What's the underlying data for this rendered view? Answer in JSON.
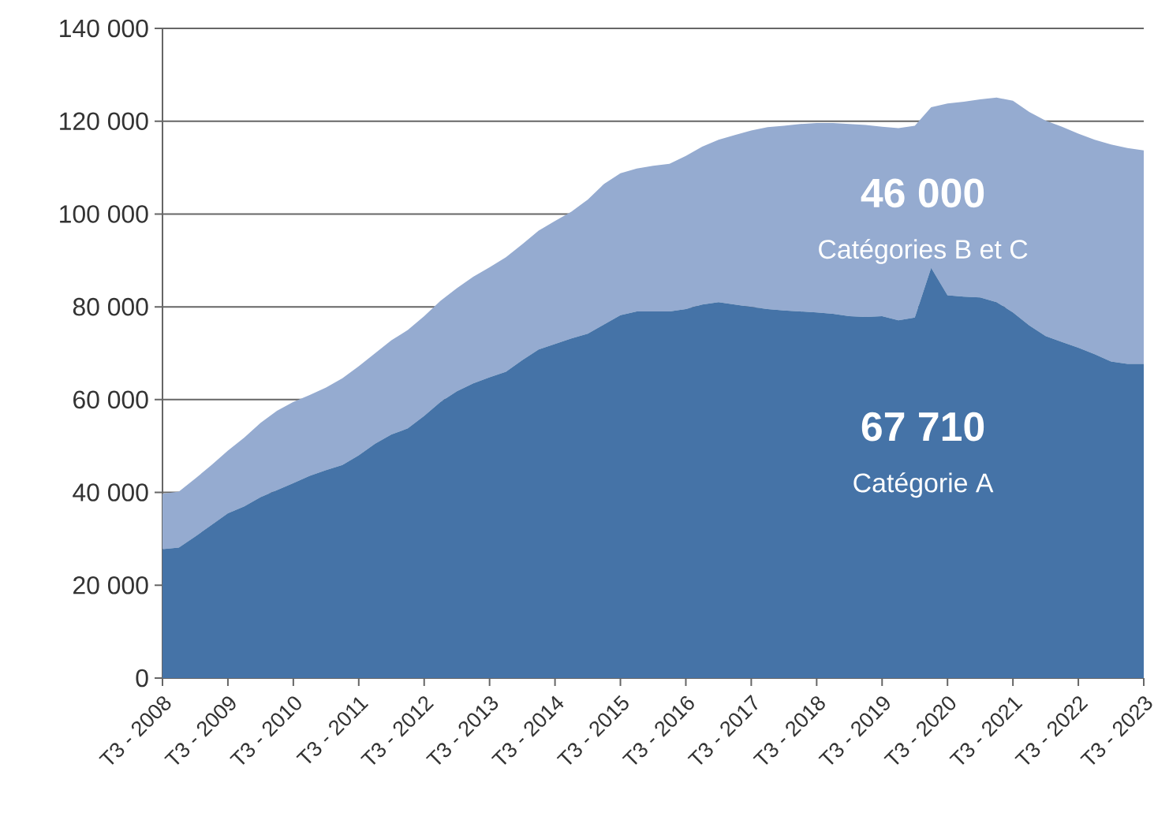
{
  "chart_data": {
    "type": "area",
    "stacked": true,
    "categories": [
      "T3 - 2008",
      null,
      null,
      null,
      "T3 - 2009",
      null,
      null,
      null,
      "T3 - 2010",
      null,
      null,
      null,
      "T3 - 2011",
      null,
      null,
      null,
      "T3 - 2012",
      null,
      null,
      null,
      "T3 - 2013",
      null,
      null,
      null,
      "T3 - 2014",
      null,
      null,
      null,
      "T3 - 2015",
      null,
      null,
      null,
      "T3 - 2016",
      null,
      null,
      null,
      "T3 - 2017",
      null,
      null,
      null,
      "T3 - 2018",
      null,
      null,
      null,
      "T3 - 2019",
      null,
      null,
      null,
      "T3 - 2020",
      null,
      null,
      null,
      "T3 - 2021",
      null,
      null,
      null,
      "T3 - 2022",
      null,
      null,
      null,
      "T3 - 2023"
    ],
    "series": [
      {
        "name": "Catégorie A",
        "color": "#4573a7",
        "values": [
          27800,
          28100,
          30500,
          33000,
          35500,
          37000,
          39000,
          40500,
          42000,
          43600,
          44800,
          45900,
          48000,
          50500,
          52500,
          53800,
          56500,
          59500,
          61800,
          63500,
          64800,
          66000,
          68500,
          70800,
          72000,
          73200,
          74200,
          76200,
          78200,
          79000,
          79000,
          79000,
          79500,
          80500,
          81000,
          80500,
          80000,
          79500,
          79200,
          79000,
          78800,
          78500,
          78000,
          77800,
          78000,
          77100,
          77700,
          88400,
          82500,
          82200,
          82000,
          81000,
          78800,
          76000,
          73700,
          72400,
          71200,
          69800,
          68200,
          67700,
          67710
        ]
      },
      {
        "name": "Catégories B et C",
        "color": "#95abd0",
        "values": [
          11900,
          12100,
          12500,
          12900,
          13500,
          14800,
          16000,
          17100,
          17500,
          17400,
          17800,
          18700,
          19200,
          19500,
          20300,
          21200,
          21500,
          21800,
          22200,
          23000,
          23700,
          24700,
          25000,
          25600,
          26500,
          27300,
          28900,
          30300,
          30600,
          30800,
          31400,
          31800,
          33000,
          34000,
          35000,
          36500,
          38000,
          39200,
          39800,
          40400,
          40800,
          41100,
          41400,
          41400,
          40800,
          41400,
          41300,
          34600,
          41300,
          42000,
          42700,
          44100,
          45600,
          46000,
          46400,
          46400,
          46100,
          46200,
          46800,
          46500,
          46000
        ]
      }
    ],
    "ylim": [
      0,
      140000
    ],
    "yticks": [
      0,
      {
        "value": 20000,
        "label": "20 000"
      },
      {
        "value": 40000,
        "label": "40 000"
      },
      {
        "value": 60000,
        "label": "60 000"
      },
      {
        "value": 80000,
        "label": "80 000"
      },
      {
        "value": 100000,
        "label": "100 000"
      },
      {
        "value": 120000,
        "label": "120 000"
      },
      {
        "value": 140000,
        "label": "140 000"
      }
    ],
    "annotations": [
      "67 710",
      "46 000"
    ],
    "grid": "y",
    "legend": false
  }
}
